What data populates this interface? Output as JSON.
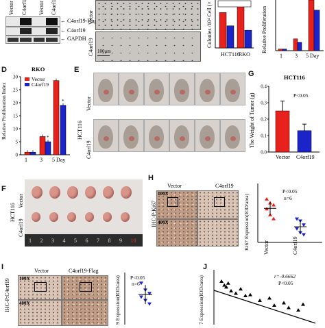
{
  "panels": {
    "A": {
      "lane_labels": [
        "Vector",
        "C4orf19",
        "Vector",
        "C4orf19"
      ],
      "bands": [
        "C4orf19-Flag",
        "C4orf19",
        "GAPDH"
      ]
    },
    "B": {
      "row_labels": [
        "Vector",
        "C4orf19"
      ],
      "scale_bar": "100μm"
    },
    "C": {
      "ylabel": "Colonies /10⁴ Cell (×",
      "categories": [
        "HCT116",
        "RKO"
      ],
      "legend": [
        "Vector",
        "C4orf19"
      ],
      "chart_data": {
        "type": "bar",
        "categories": [
          "HCT116",
          "RKO"
        ],
        "series": [
          {
            "name": "Vector",
            "values": [
              4.8,
              5.6
            ]
          },
          {
            "name": "C4orf19",
            "values": [
              3.0,
              2.4
            ]
          }
        ]
      }
    },
    "A2": {
      "ylabel": "Relative Proliferation",
      "x_ticks": [
        "1",
        "3",
        "5 Day"
      ],
      "chart_data": {
        "type": "bar",
        "categories": [
          "1",
          "3",
          "5 Day"
        ],
        "series": [
          {
            "name": "Vector",
            "values": [
              1,
              7,
              33
            ]
          },
          {
            "name": "C4orf19",
            "values": [
              1,
              5,
              24
            ]
          }
        ]
      }
    },
    "D": {
      "letter": "D",
      "title": "RKO",
      "ylabel": "Relative Proliferation Index",
      "legend": [
        "Vector",
        "C4orf19"
      ],
      "y_ticks": [
        "0",
        "5",
        "10",
        "15",
        "20",
        "25",
        "30"
      ],
      "x_ticks": [
        "1",
        "3",
        "5 Day"
      ],
      "chart_data": {
        "type": "bar",
        "categories": [
          "1",
          "3",
          "5 Day"
        ],
        "ylim": [
          0,
          30
        ],
        "series": [
          {
            "name": "Vector",
            "values": [
              1,
              7,
              28.5
            ]
          },
          {
            "name": "C4orf19",
            "values": [
              1,
              5,
              19
            ]
          }
        ]
      }
    },
    "E": {
      "letter": "E",
      "group_label": "HCT116",
      "row_labels": [
        "Vector",
        "C4orf19"
      ]
    },
    "G": {
      "letter": "G",
      "title": "HCT116",
      "ylabel": "The Weight of Tumor (g)",
      "pvalue": "P<0.05",
      "y_ticks": [
        "0.0",
        "0.1",
        "0.2",
        "0.3",
        "0.4"
      ],
      "x_ticks": [
        "Vector",
        "C4orf19"
      ],
      "chart_data": {
        "type": "bar",
        "categories": [
          "Vector",
          "C4orf19"
        ],
        "values": [
          0.25,
          0.13
        ],
        "errors": [
          0.06,
          0.04
        ],
        "ylim": [
          0,
          0.4
        ]
      }
    },
    "F": {
      "letter": "F",
      "group_label": "HCT116",
      "row_labels": [
        "Vector",
        "C4orf19"
      ],
      "ruler": [
        "1",
        "2",
        "3",
        "4",
        "5",
        "6",
        "7",
        "8",
        "9",
        "10"
      ]
    },
    "H": {
      "letter": "H",
      "col_labels": [
        "Vector",
        "C4orf19"
      ],
      "row_label": "IHC-P:Ki67",
      "mags": [
        "100X",
        "400X"
      ],
      "ylabel": "Ki67 Expression(IOD/area)",
      "pvalue": "P<0.05",
      "n": "n=6",
      "x_ticks": [
        "Vector",
        "C4orf19"
      ],
      "chart_data": {
        "type": "scatter",
        "categories": [
          "Vector",
          "C4orf19"
        ],
        "ylim": [
          0,
          0.15
        ],
        "series": [
          {
            "name": "Vector",
            "values": [
              0.11,
              0.1,
              0.095,
              0.085,
              0.07,
              0.06
            ]
          },
          {
            "name": "C4orf19",
            "values": [
              0.06,
              0.055,
              0.045,
              0.035,
              0.025,
              0.02
            ]
          }
        ]
      }
    },
    "I": {
      "letter": "I",
      "col_labels": [
        "Vector",
        "C4orf19-Flag"
      ],
      "row_label": "IHC-P:C4orf19",
      "mags": [
        "100X",
        "400X"
      ],
      "ylabel": "9 Expression(IOD/area)",
      "pvalue": "P<0.05",
      "n": "n=6",
      "chart_data": {
        "type": "scatter",
        "series": [
          {
            "name": "C4orf19",
            "values": [
              0.24,
              0.2,
              0.18,
              0.16,
              0.14,
              0.12
            ]
          }
        ]
      }
    },
    "J": {
      "letter": "J",
      "r_text": "r=-0.6662",
      "pvalue": "P<0.05",
      "ylabel": "7 Expression(IOD/area)",
      "chart_data": {
        "type": "scatter",
        "points": [
          [
            0.05,
            0.9
          ],
          [
            0.08,
            0.82
          ],
          [
            0.1,
            0.78
          ],
          [
            0.12,
            0.86
          ],
          [
            0.15,
            0.7
          ],
          [
            0.2,
            0.65
          ],
          [
            0.25,
            0.74
          ],
          [
            0.3,
            0.6
          ],
          [
            0.35,
            0.62
          ],
          [
            0.45,
            0.5
          ],
          [
            0.55,
            0.55
          ],
          [
            0.6,
            0.4
          ],
          [
            0.7,
            0.45
          ],
          [
            0.75,
            0.35
          ],
          [
            0.85,
            0.3
          ],
          [
            0.9,
            0.42
          ]
        ]
      }
    }
  },
  "colors": {
    "vector": "#e8211d",
    "c4orf19": "#1a24c8"
  }
}
